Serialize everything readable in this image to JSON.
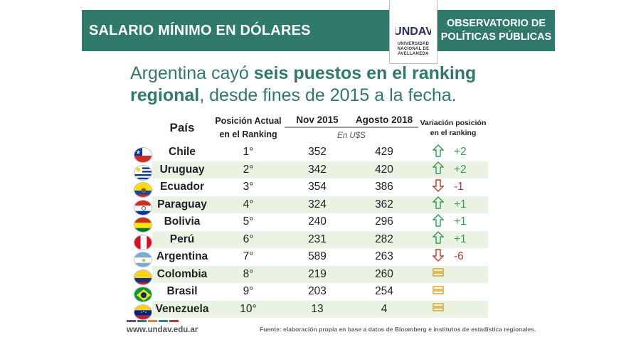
{
  "banner": {
    "title": "SALARIO MÍNIMO EN DÓLARES",
    "org_line1": "OBSERVATORIO DE",
    "org_line2": "POLÍTICAS PÚBLICAS"
  },
  "logo": {
    "mark": "UNDAV",
    "sub1": "UNIVERSIDAD",
    "sub2": "NACIONAL DE",
    "sub3": "AVELLANEDA"
  },
  "headline": {
    "part1": "Argentina cayó ",
    "bold1": "seis puestos en el ranking",
    "bold2": "regional",
    "part2": ", desde fines de 2015 a la fecha."
  },
  "table": {
    "headers": {
      "country": "País",
      "position": "Posición Actual en el Ranking",
      "nov": "Nov 2015",
      "ago": "Agosto 2018",
      "unit": "En U$S",
      "variation": "Variación posición en el ranking"
    },
    "rows": [
      {
        "country": "Chile",
        "position": "1°",
        "nov": "352",
        "ago": "429",
        "trend": "up",
        "change": "+2",
        "flag": "chile"
      },
      {
        "country": "Uruguay",
        "position": "2°",
        "nov": "342",
        "ago": "420",
        "trend": "up",
        "change": "+2",
        "flag": "uruguay"
      },
      {
        "country": "Ecuador",
        "position": "3°",
        "nov": "354",
        "ago": "386",
        "trend": "down",
        "change": "-1",
        "flag": "ecuador"
      },
      {
        "country": "Paraguay",
        "position": "4°",
        "nov": "324",
        "ago": "362",
        "trend": "up",
        "change": "+1",
        "flag": "paraguay"
      },
      {
        "country": "Bolivia",
        "position": "5°",
        "nov": "240",
        "ago": "296",
        "trend": "up",
        "change": "+1",
        "flag": "bolivia"
      },
      {
        "country": "Perú",
        "position": "6°",
        "nov": "231",
        "ago": "282",
        "trend": "up",
        "change": "+1",
        "flag": "peru"
      },
      {
        "country": "Argentina",
        "position": "7°",
        "nov": "589",
        "ago": "263",
        "trend": "down",
        "change": "-6",
        "flag": "argentina"
      },
      {
        "country": "Colombia",
        "position": "8°",
        "nov": "219",
        "ago": "260",
        "trend": "equal",
        "change": "",
        "flag": "colombia"
      },
      {
        "country": "Brasil",
        "position": "9°",
        "nov": "203",
        "ago": "254",
        "trend": "equal",
        "change": "",
        "flag": "brasil"
      },
      {
        "country": "Venezuela",
        "position": "10°",
        "nov": "13",
        "ago": "4",
        "trend": "equal",
        "change": "",
        "flag": "venezuela"
      }
    ]
  },
  "footer": {
    "url": "www.undav.edu.ar",
    "source": "Fuente: elaboración propia en base a datos de Bloomberg e institutos de estadística regionales."
  },
  "colors": {
    "brand_green": "#2f7a6b",
    "up_green": "#2f9e55",
    "down_red": "#c0392b",
    "equal_gold": "#d4a017"
  }
}
